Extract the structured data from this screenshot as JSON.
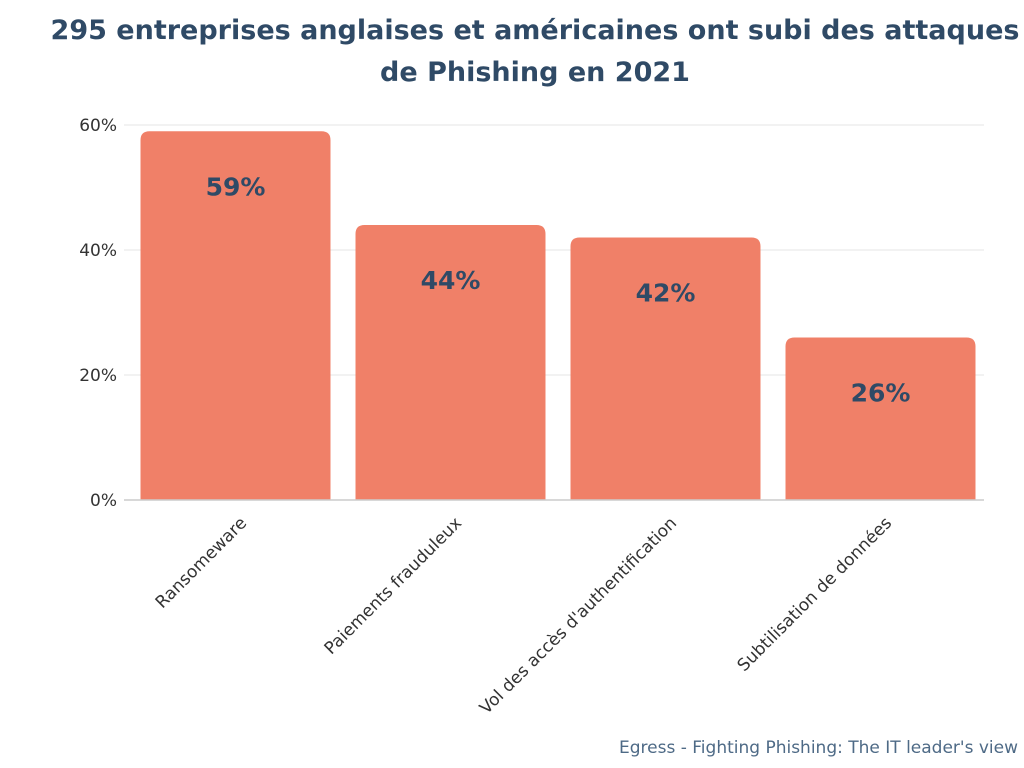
{
  "chart_data": {
    "type": "bar",
    "title_lines": [
      "295 entreprises anglaises et américaines ont subi des attaques",
      "de Phishing en 2021"
    ],
    "categories": [
      "Ransomeware",
      "Paiements frauduleux",
      "Vol des accès d'authentification",
      "Subtilisation de données"
    ],
    "values": [
      59,
      44,
      42,
      26
    ],
    "data_labels": [
      "59%",
      "44%",
      "42%",
      "26%"
    ],
    "yticks": [
      0,
      20,
      40,
      60
    ],
    "ytick_labels": [
      "0%",
      "20%",
      "40%",
      "60%"
    ],
    "ylim": [
      0,
      60
    ],
    "grid": true,
    "bar_color": "#f08068",
    "label_color": "#2f4a66",
    "source": "Egress - Fighting Phishing: The IT leader's view"
  }
}
